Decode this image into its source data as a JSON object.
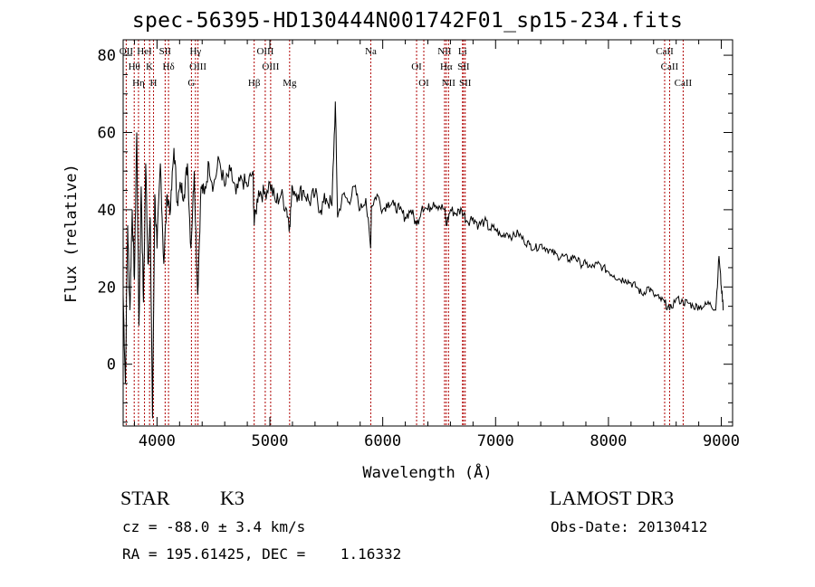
{
  "title": "spec-56395-HD130444N001742F01_sp15-234.fits",
  "classification": {
    "type": "STAR",
    "subclass": "K3"
  },
  "survey": "LAMOST DR3",
  "redshift_line": "cz = -88.0 ± 3.4 km/s",
  "obs_date_line": "Obs-Date: 20130412",
  "coord_line": "RA = 195.61425, DEC =    1.16332",
  "colors": {
    "spectrum": "#000000",
    "line_marker": "#b00000",
    "frame": "#000000"
  },
  "chart_data": {
    "type": "line",
    "title": "spec-56395-HD130444N001742F01_sp15-234.fits",
    "xlabel": "Wavelength (Å)",
    "ylabel": "Flux (relative)",
    "xlim": [
      3700,
      9100
    ],
    "ylim": [
      -16,
      84
    ],
    "xticks": [
      4000,
      5000,
      6000,
      7000,
      8000,
      9000
    ],
    "yticks": [
      0,
      20,
      40,
      60,
      80
    ],
    "series": [
      {
        "name": "flux",
        "x": [
          3700,
          3720,
          3740,
          3760,
          3780,
          3800,
          3820,
          3840,
          3860,
          3880,
          3900,
          3920,
          3940,
          3960,
          3980,
          4000,
          4030,
          4060,
          4090,
          4120,
          4150,
          4180,
          4210,
          4240,
          4270,
          4300,
          4330,
          4360,
          4390,
          4420,
          4460,
          4500,
          4550,
          4600,
          4650,
          4700,
          4750,
          4800,
          4850,
          4861,
          4900,
          4950,
          5000,
          5050,
          5100,
          5150,
          5175,
          5200,
          5250,
          5300,
          5350,
          5400,
          5450,
          5500,
          5550,
          5580,
          5600,
          5650,
          5700,
          5750,
          5800,
          5850,
          5893,
          5900,
          5950,
          6000,
          6050,
          6100,
          6150,
          6200,
          6250,
          6300,
          6350,
          6400,
          6450,
          6500,
          6550,
          6563,
          6600,
          6650,
          6700,
          6750,
          6800,
          6850,
          6900,
          6950,
          7000,
          7050,
          7100,
          7150,
          7200,
          7250,
          7300,
          7350,
          7400,
          7450,
          7500,
          7550,
          7600,
          7650,
          7700,
          7750,
          7800,
          7850,
          7900,
          7950,
          8000,
          8050,
          8100,
          8150,
          8200,
          8250,
          8300,
          8350,
          8400,
          8450,
          8498,
          8542,
          8600,
          8662,
          8700,
          8750,
          8800,
          8850,
          8900,
          8950,
          8980,
          9000,
          9020
        ],
        "y": [
          18,
          -5,
          36,
          14,
          40,
          22,
          60,
          10,
          46,
          16,
          52,
          26,
          38,
          -14,
          44,
          30,
          52,
          26,
          44,
          40,
          56,
          42,
          46,
          44,
          52,
          30,
          50,
          18,
          46,
          44,
          52,
          46,
          53,
          46,
          50,
          44,
          48,
          46,
          50,
          36,
          45,
          44,
          47,
          42,
          44,
          40,
          36,
          46,
          44,
          45,
          42,
          44,
          40,
          43,
          41,
          68,
          38,
          44,
          42,
          46,
          40,
          43,
          30,
          41,
          44,
          40,
          42,
          41,
          40,
          38,
          40,
          36,
          41,
          40,
          42,
          41,
          40,
          36,
          40,
          39,
          40,
          37,
          38,
          36,
          37,
          35,
          35,
          33,
          34,
          33,
          34,
          32,
          31,
          30,
          31,
          30,
          29,
          28,
          28,
          27,
          28,
          26,
          26,
          25,
          26,
          25,
          24,
          23,
          22,
          22,
          21,
          20,
          18,
          20,
          18,
          17,
          16,
          14,
          17,
          16,
          16,
          15,
          15,
          15,
          16,
          14,
          28,
          20,
          14
        ]
      }
    ],
    "spectral_lines": [
      {
        "label": "OII",
        "wavelength": 3727
      },
      {
        "label": "Hθ",
        "wavelength": 3798
      },
      {
        "label": "Hη",
        "wavelength": 3836
      },
      {
        "label": "HeI",
        "wavelength": 3889
      },
      {
        "label": "K",
        "wavelength": 3934
      },
      {
        "label": "H",
        "wavelength": 3969
      },
      {
        "label": "SII",
        "wavelength": 4072
      },
      {
        "label": "Hδ",
        "wavelength": 4102
      },
      {
        "label": "G",
        "wavelength": 4305
      },
      {
        "label": "Hγ",
        "wavelength": 4341
      },
      {
        "label": "OIII",
        "wavelength": 4363
      },
      {
        "label": "Hβ",
        "wavelength": 4861
      },
      {
        "label": "OIII",
        "wavelength": 4959
      },
      {
        "label": "OIII",
        "wavelength": 5007
      },
      {
        "label": "Mg",
        "wavelength": 5175
      },
      {
        "label": "Na",
        "wavelength": 5894
      },
      {
        "label": "OI",
        "wavelength": 6300
      },
      {
        "label": "OI",
        "wavelength": 6364
      },
      {
        "label": "NII",
        "wavelength": 6548
      },
      {
        "label": "Hα",
        "wavelength": 6563
      },
      {
        "label": "NII",
        "wavelength": 6583
      },
      {
        "label": "Li",
        "wavelength": 6707
      },
      {
        "label": "SII",
        "wavelength": 6716
      },
      {
        "label": "SII",
        "wavelength": 6731
      },
      {
        "label": "CaII",
        "wavelength": 8498
      },
      {
        "label": "CaII",
        "wavelength": 8542
      },
      {
        "label": "CaII",
        "wavelength": 8662
      }
    ]
  }
}
